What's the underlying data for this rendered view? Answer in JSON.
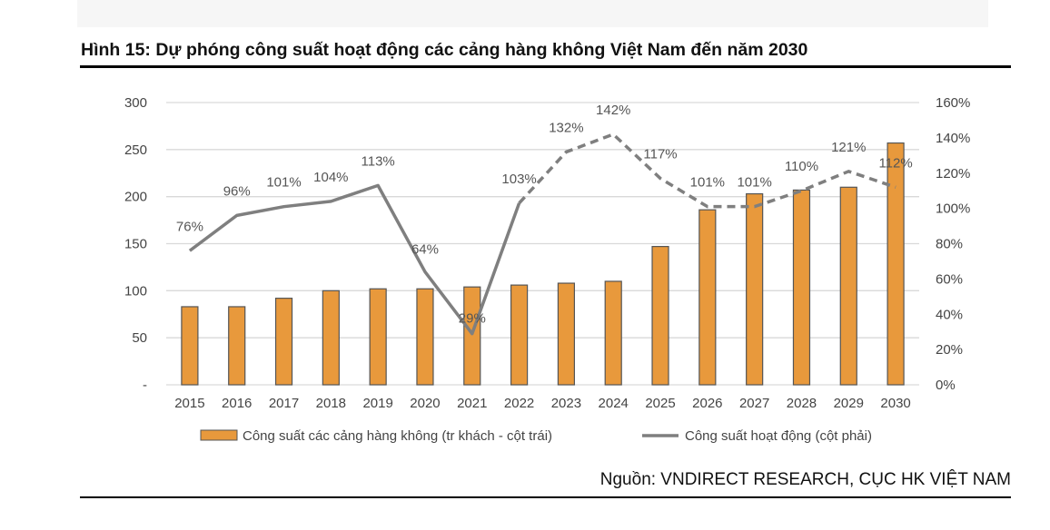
{
  "title": "Hình 15: Dự phóng công suất hoạt động các cảng hàng không Việt Nam đến năm 2030",
  "source": "Nguồn: VNDIRECT RESEARCH, CỤC HK VIỆT NAM",
  "chart_data": {
    "type": "bar+line",
    "categories": [
      "2015",
      "2016",
      "2017",
      "2018",
      "2019",
      "2020",
      "2021",
      "2022",
      "2023",
      "2024",
      "2025",
      "2026",
      "2027",
      "2028",
      "2029",
      "2030"
    ],
    "left_axis": {
      "range": [
        0,
        300
      ],
      "ticks": [
        "-",
        "50",
        "100",
        "150",
        "200",
        "250",
        "300"
      ]
    },
    "right_axis": {
      "range": [
        0,
        160
      ],
      "ticks": [
        "0%",
        "20%",
        "40%",
        "60%",
        "80%",
        "100%",
        "120%",
        "140%",
        "160%"
      ]
    },
    "grid": true,
    "legend": "bottom",
    "series": [
      {
        "name": "Công suất các cảng hàng không (tr khách - cột trái)",
        "type": "bar",
        "axis": "left",
        "color": "#E8993C",
        "values": [
          83,
          83,
          92,
          100,
          102,
          102,
          104,
          106,
          108,
          110,
          147,
          186,
          203,
          207,
          210,
          257
        ]
      },
      {
        "name": "Công suất hoạt động (cột phải)",
        "type": "line",
        "axis": "right",
        "color": "#7F7F7F",
        "values": [
          76,
          96,
          101,
          104,
          113,
          64,
          29,
          103,
          132,
          142,
          117,
          101,
          101,
          110,
          121,
          112
        ],
        "labels": [
          "76%",
          "96%",
          "101%",
          "104%",
          "113%",
          "64%",
          "29%",
          "103%",
          "132%",
          "142%",
          "117%",
          "101%",
          "101%",
          "110%",
          "121%",
          "112%"
        ],
        "solid_until": "2022",
        "dashed_from": "2022"
      }
    ]
  }
}
